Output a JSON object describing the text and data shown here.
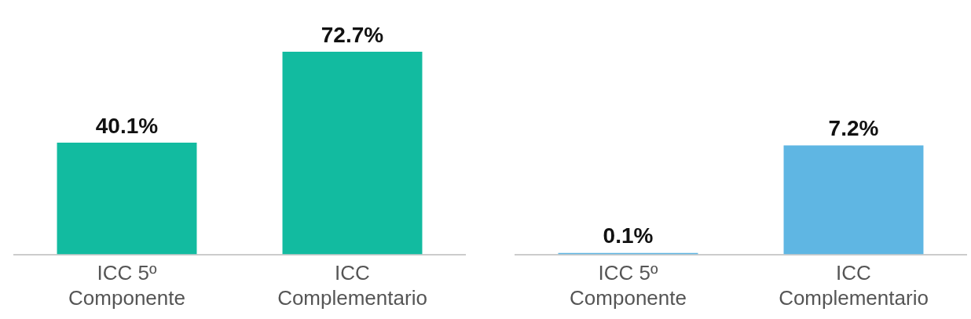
{
  "chart_data": [
    {
      "type": "bar",
      "categories": [
        "ICC 5º Componente",
        "ICC Complementario"
      ],
      "values": [
        40.1,
        72.7
      ],
      "color": "#12bba0",
      "value_labels": [
        "40.1%",
        "72.7%"
      ],
      "tick_labels": "x",
      "grid": false,
      "legend": false
    },
    {
      "type": "bar",
      "categories": [
        "ICC 5º Componente",
        "ICC Complementario"
      ],
      "values": [
        0.1,
        7.2
      ],
      "color": "#5fb6e3",
      "value_labels": [
        "0.1%",
        "7.2%"
      ],
      "tick_labels": "x",
      "grid": false,
      "legend": false
    }
  ]
}
